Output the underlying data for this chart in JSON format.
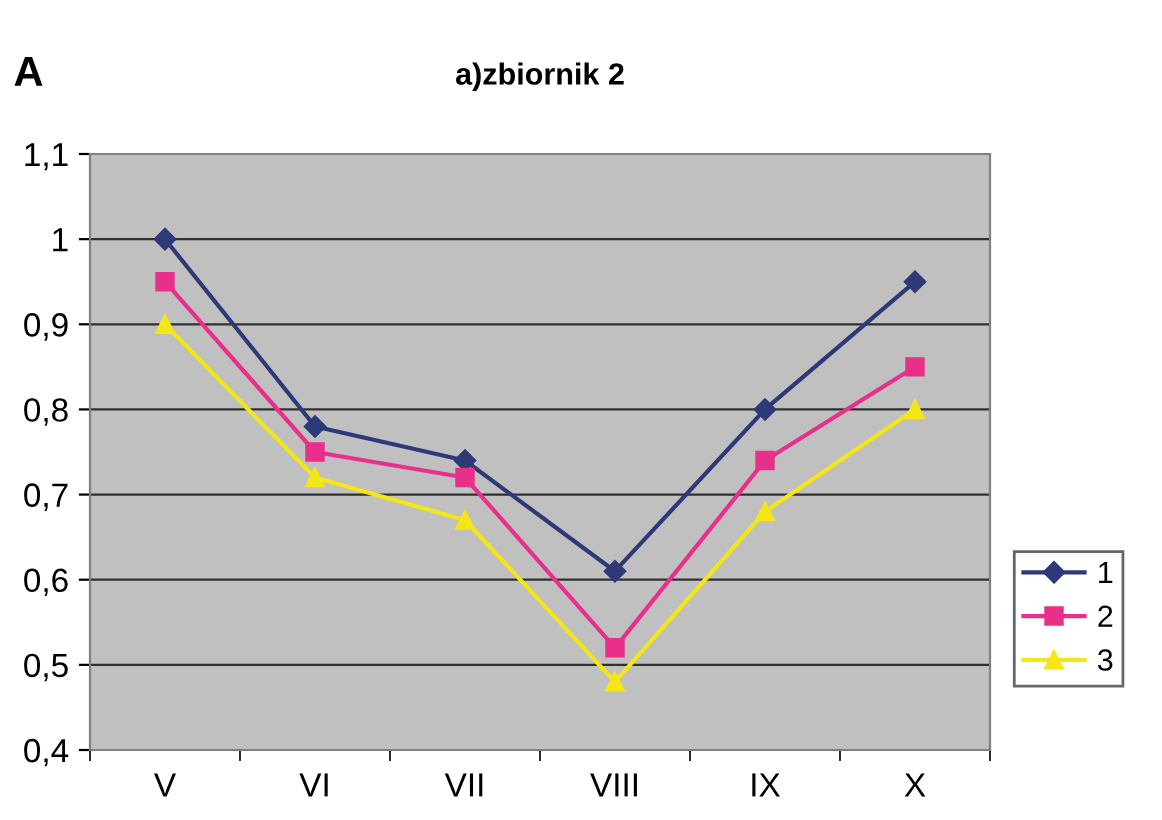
{
  "chart_data": {
    "type": "line",
    "title": "a)zbiornik 2",
    "ylabel": "A",
    "categories": [
      "V",
      "VI",
      "VII",
      "VIII",
      "IX",
      "X"
    ],
    "series": [
      {
        "name": "1",
        "color": "#2e3a78",
        "marker": "diamond",
        "values": [
          1.0,
          0.78,
          0.74,
          0.61,
          0.8,
          0.95
        ]
      },
      {
        "name": "2",
        "color": "#e8308a",
        "marker": "square",
        "values": [
          0.95,
          0.75,
          0.72,
          0.52,
          0.74,
          0.85
        ]
      },
      {
        "name": "3",
        "color": "#f5e615",
        "marker": "triangle",
        "values": [
          0.9,
          0.72,
          0.67,
          0.48,
          0.68,
          0.8
        ]
      }
    ],
    "ylim": [
      0.4,
      1.1
    ],
    "yticks": [
      {
        "value": 0.4,
        "label": "0,4"
      },
      {
        "value": 0.5,
        "label": "0,5"
      },
      {
        "value": 0.6,
        "label": "0,6"
      },
      {
        "value": 0.7,
        "label": "0,7"
      },
      {
        "value": 0.8,
        "label": "0,8"
      },
      {
        "value": 0.9,
        "label": "0,9"
      },
      {
        "value": 1,
        "label": "1"
      },
      {
        "value": 1.1,
        "label": "1,1"
      }
    ],
    "grid": "y",
    "legend": "right"
  }
}
